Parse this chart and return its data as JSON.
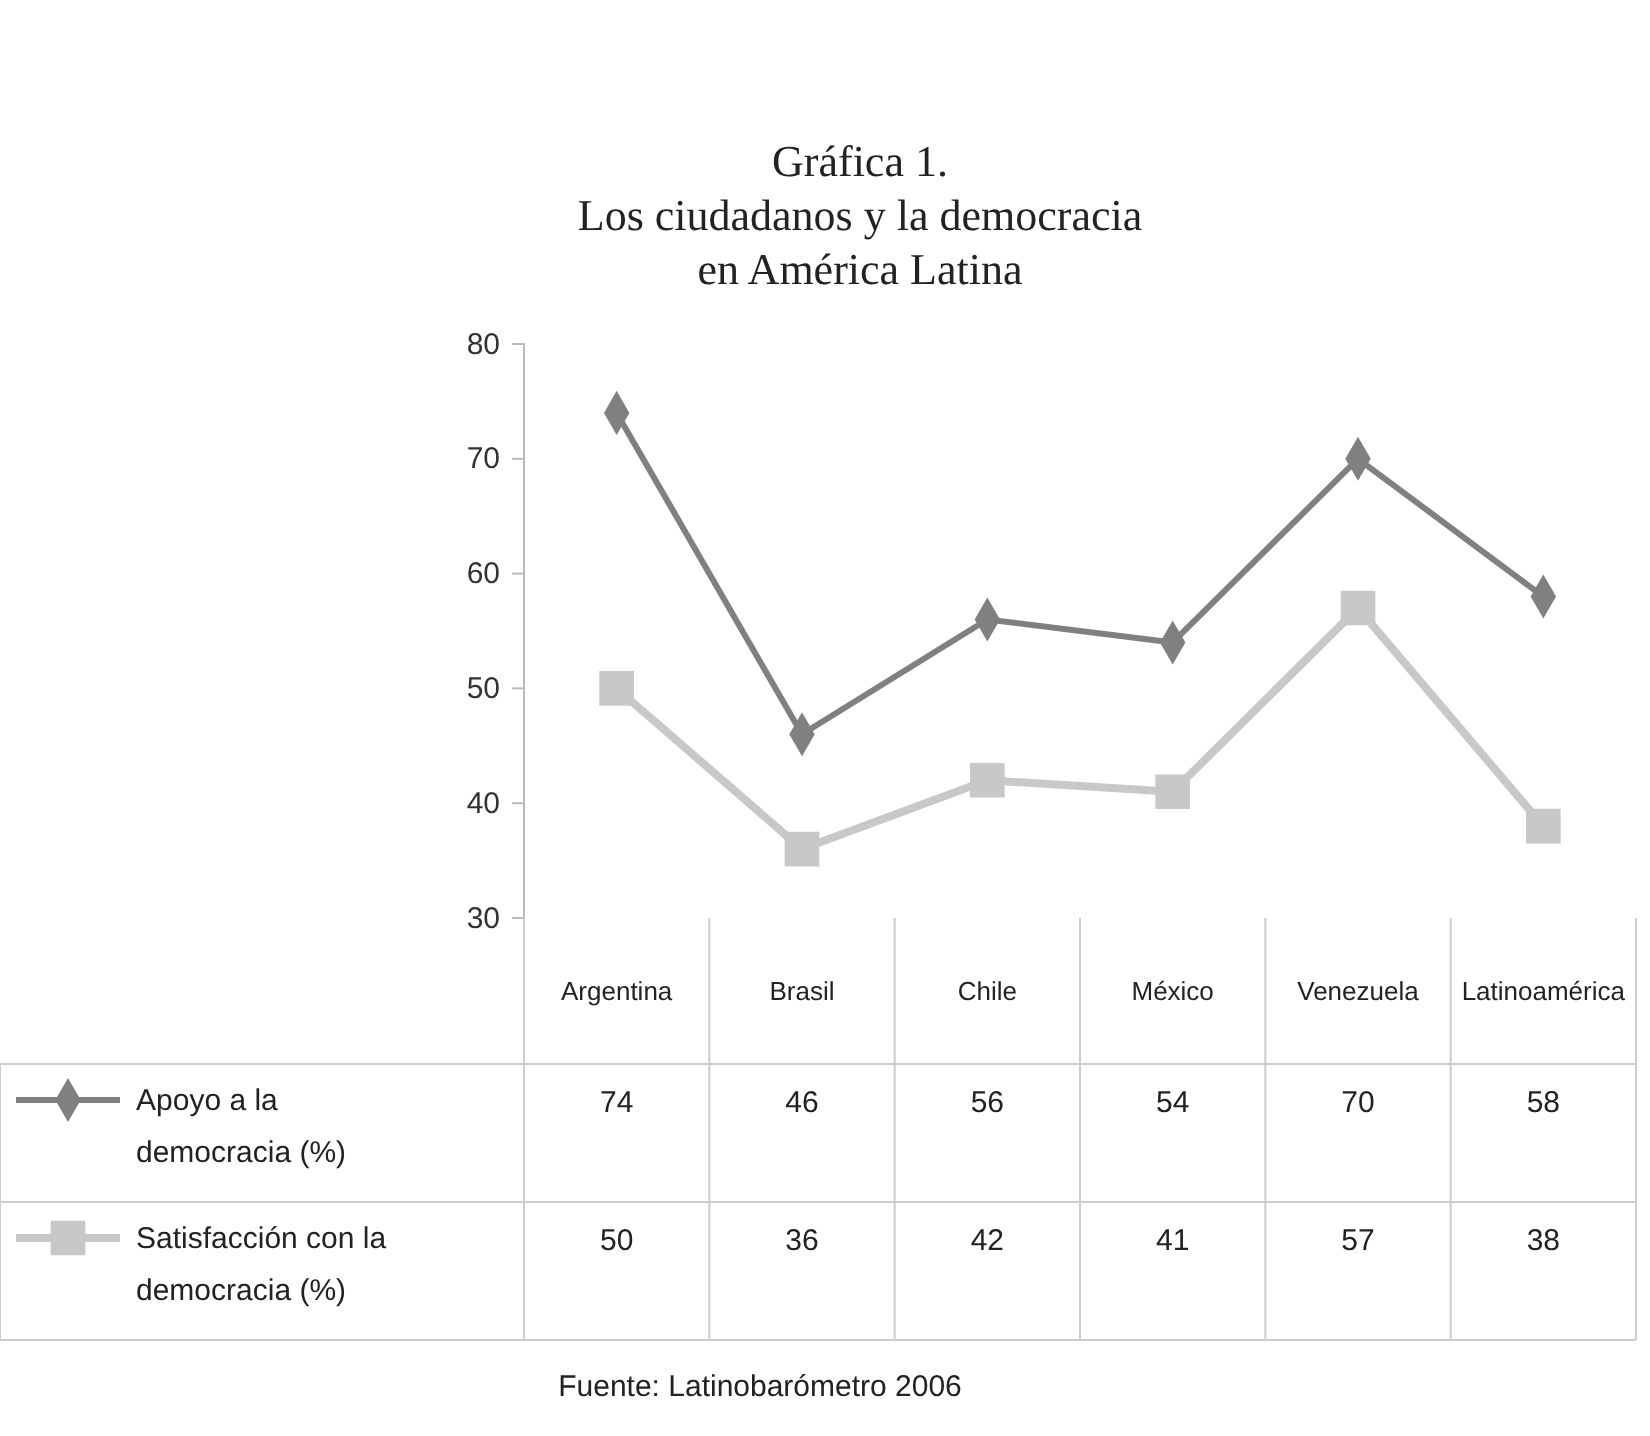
{
  "chart_data": {
    "type": "line",
    "title": "Gráfica 1.\nLos ciudadanos y la democracia\nen América Latina",
    "categories": [
      "Argentina",
      "Brasil",
      "Chile",
      "México",
      "Venezuela",
      "Latinoamérica"
    ],
    "series": [
      {
        "name": "Apoyo a la democracia (%)",
        "color": "#808080",
        "marker": "diamond",
        "values": [
          74,
          46,
          56,
          54,
          70,
          58
        ]
      },
      {
        "name": "Satisfacción con la democracia (%)",
        "color": "#c8c8c8",
        "marker": "square",
        "values": [
          50,
          36,
          42,
          41,
          57,
          38
        ]
      }
    ],
    "ylim": [
      30,
      80
    ],
    "yticks": [
      30,
      40,
      50,
      60,
      70,
      80
    ],
    "grid": false,
    "legend": "bottom",
    "data_labels": true,
    "line_style": "solid",
    "annotations": [
      "Fuente: Latinobarómetro 2006"
    ]
  }
}
